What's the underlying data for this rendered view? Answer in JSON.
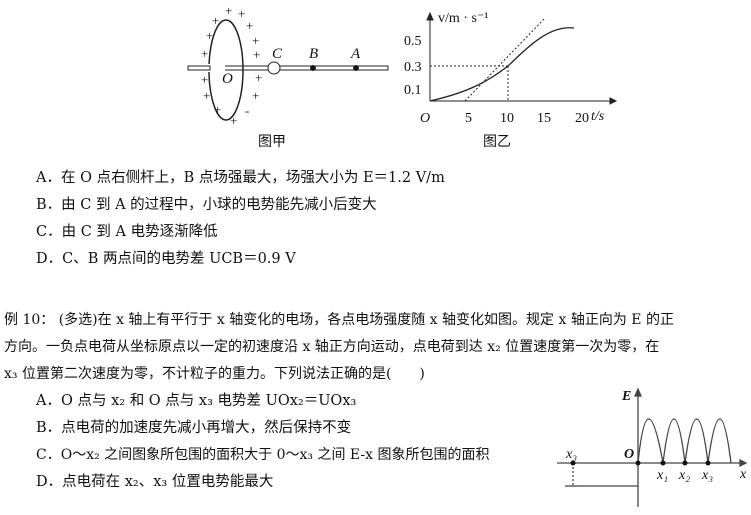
{
  "fig_a": {
    "caption": "图甲",
    "labels": {
      "O": "O",
      "C": "C",
      "B": "B",
      "A": "A"
    },
    "charges": "+",
    "minus": "-"
  },
  "fig_b": {
    "caption": "图乙",
    "y_label": "v/m · s⁻¹",
    "x_label": "t/s",
    "origin": "O",
    "y_ticks": [
      "0.5",
      "0.3",
      "0.1"
    ],
    "x_ticks": [
      "5",
      "10",
      "15",
      "20"
    ]
  },
  "q9": {
    "options": [
      {
        "key": "A．",
        "text": "在 O 点右侧杆上，B 点场强最大，场强大小为 E＝1.2 V/m"
      },
      {
        "key": "B．",
        "text": "由 C 到 A 的过程中，小球的电势能先减小后变大"
      },
      {
        "key": "C．",
        "text": "由 C 到 A 电势逐渐降低"
      },
      {
        "key": "D．",
        "text": "C、B 两点间的电势差 UCB＝0.9 V"
      }
    ]
  },
  "q10": {
    "stem": [
      "例 10： (多选)在 x 轴上有平行于 x 轴变化的电场，各点电场强度随 x 轴变化如图。规定 x 轴正向为 E 的正",
      "方向。一负点电荷从坐标原点以一定的初速度沿 x 轴正方向运动，点电荷到达 x₂ 位置速度第一次为零，在",
      "x₃ 位置第二次速度为零，不计粒子的重力。下列说法正确的是(　　)"
    ],
    "options": [
      {
        "key": "A．",
        "text": "O 点与 x₂ 和 O 点与 x₃ 电势差 UOx₂＝UOx₃"
      },
      {
        "key": "B．",
        "text": "点电荷的加速度先减小再增大，然后保持不变"
      },
      {
        "key": "C．",
        "text": "O～x₂ 之间图象所包围的面积大于 0～x₃ 之间 E-x 图象所包围的面积"
      },
      {
        "key": "D．",
        "text": "点电荷在 x₂、x₃ 位置电势能最大"
      }
    ],
    "graph": {
      "y_label": "E",
      "x_label": "x",
      "origin": "O",
      "ticks": [
        "x₁",
        "x₂",
        "x₃"
      ],
      "neg_label": "x₃"
    }
  }
}
